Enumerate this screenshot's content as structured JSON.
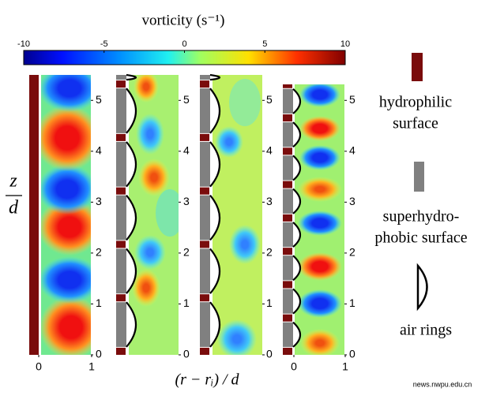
{
  "colorbar": {
    "title": "vorticity (s⁻¹)",
    "lim": [
      -10,
      10
    ],
    "ticks": [
      -10,
      -5,
      0,
      5,
      10
    ]
  },
  "panels": {
    "ylim": [
      0,
      5.5
    ],
    "yticks": [
      0,
      1,
      2,
      3,
      4,
      5
    ],
    "xlim": [
      0,
      1
    ],
    "xticks": [
      0,
      1
    ],
    "ylabel_top": "z",
    "ylabel_bottom": "d",
    "xlabel": "(r − rᵢ) / d"
  },
  "legend": {
    "hydrophilic": [
      "hydrophilic",
      "surface"
    ],
    "superhydrophobic": [
      "superhydro-",
      "phobic surface"
    ],
    "air_rings": "air rings"
  },
  "watermark": "news.nwpu.edu.cn"
}
